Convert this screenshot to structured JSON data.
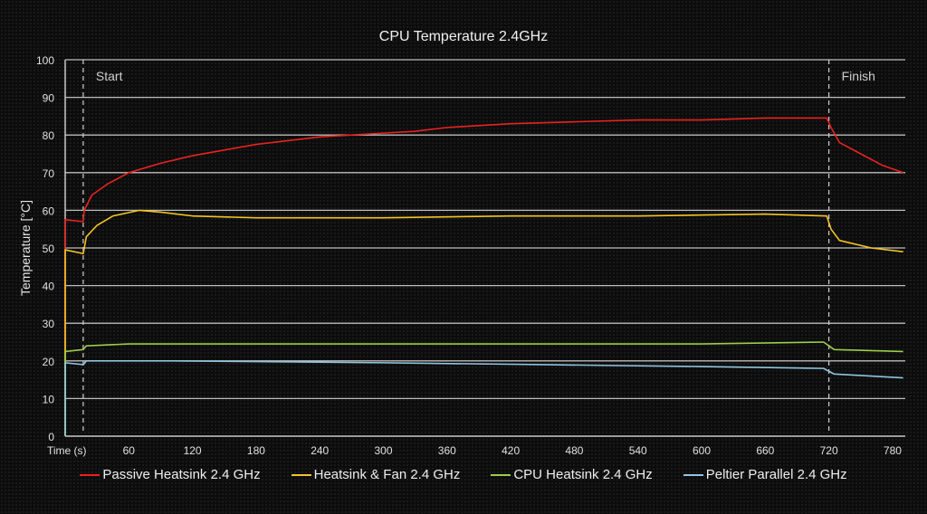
{
  "chart_data": {
    "type": "line",
    "title": "CPU Temperature 2.4GHz",
    "xlabel": "Time (s)",
    "ylabel": "Temperature [°C]",
    "xlim": [
      0,
      792
    ],
    "ylim": [
      0,
      100
    ],
    "xticks": [
      60,
      120,
      180,
      240,
      300,
      360,
      420,
      480,
      540,
      600,
      660,
      720,
      780
    ],
    "yticks": [
      0,
      10,
      20,
      30,
      40,
      50,
      60,
      70,
      80,
      90,
      100
    ],
    "grid": "horizontal",
    "legend_position": "bottom",
    "annotations": [
      {
        "label": "Start",
        "x": 17
      },
      {
        "label": "Finish",
        "x": 720
      }
    ],
    "series": [
      {
        "name": "Passive Heatsink 2.4 GHz",
        "color": "#e8231f",
        "x": [
          0,
          17,
          18,
          25,
          40,
          60,
          90,
          120,
          150,
          180,
          210,
          240,
          270,
          300,
          330,
          360,
          420,
          480,
          540,
          600,
          660,
          718,
          722,
          730,
          750,
          770,
          790
        ],
        "y": [
          57.5,
          57,
          60,
          64,
          67,
          70,
          72.5,
          74.5,
          76,
          77.5,
          78.5,
          79.5,
          80,
          80.5,
          81,
          82,
          83,
          83.5,
          84,
          84,
          84.5,
          84.5,
          82,
          78,
          75,
          72,
          70
        ]
      },
      {
        "name": "Heatsink & Fan 2.4 GHz",
        "color": "#f2c425",
        "x": [
          0,
          17,
          20,
          30,
          45,
          70,
          90,
          120,
          180,
          300,
          420,
          540,
          660,
          718,
          722,
          730,
          760,
          790
        ],
        "y": [
          49.5,
          48.5,
          53,
          56,
          58.5,
          60,
          59.5,
          58.5,
          58,
          58,
          58.5,
          58.5,
          59,
          58.5,
          55,
          52,
          50,
          49
        ]
      },
      {
        "name": "CPU Heatsink 2.4 GHz",
        "color": "#9ccc4a",
        "x": [
          0,
          17,
          20,
          60,
          200,
          400,
          600,
          715,
          725,
          790
        ],
        "y": [
          22.5,
          23,
          24,
          24.5,
          24.5,
          24.5,
          24.5,
          25,
          23,
          22.5
        ]
      },
      {
        "name": "Peltier Parallel 2.4 GHz",
        "color": "#8fc4e0",
        "x": [
          0,
          17,
          20,
          100,
          300,
          450,
          600,
          715,
          725,
          790
        ],
        "y": [
          19.5,
          19,
          20,
          20,
          19.5,
          19,
          18.5,
          18,
          16.5,
          15.5
        ]
      }
    ]
  }
}
